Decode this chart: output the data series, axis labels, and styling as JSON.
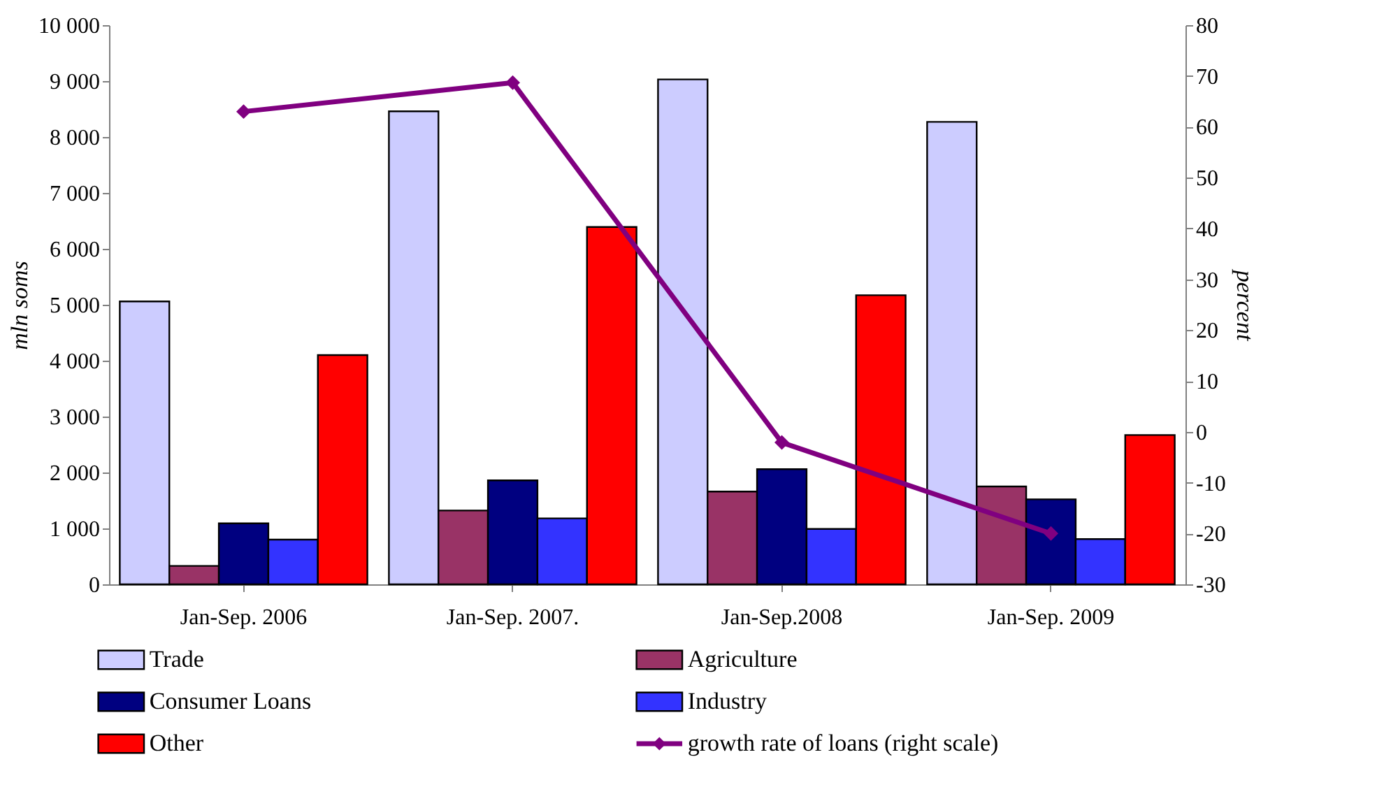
{
  "chart_data": {
    "type": "bar",
    "categories": [
      "Jan-Sep. 2006",
      "Jan-Sep. 2007.",
      "Jan-Sep.2008",
      "Jan-Sep. 2009"
    ],
    "ylabel": "mln soms",
    "y2label": "percent",
    "ylim": [
      0,
      10000
    ],
    "yticks": [
      0,
      {
        "value": 1000,
        "label": "1 000"
      },
      {
        "value": 2000,
        "label": "2 000"
      },
      {
        "value": 3000,
        "label": "3 000"
      },
      {
        "value": 4000,
        "label": "4 000"
      },
      {
        "value": 5000,
        "label": "5 000"
      },
      {
        "value": 6000,
        "label": "6 000"
      },
      {
        "value": 7000,
        "label": "7 000"
      },
      {
        "value": 8000,
        "label": "8 000"
      },
      {
        "value": 9000,
        "label": "9 000"
      },
      {
        "value": 10000,
        "label": "10 000"
      }
    ],
    "y2lim": [
      -30,
      80
    ],
    "y2ticks": [
      -30,
      -20,
      -10,
      0,
      10,
      20,
      30,
      40,
      50,
      60,
      70,
      80
    ],
    "legend": "bottom",
    "grid": false,
    "series": [
      {
        "name": "Trade",
        "color": "#ccccff",
        "values": [
          5060,
          8460,
          9030,
          8270
        ]
      },
      {
        "name": "Agriculture",
        "color": "#993366",
        "values": [
          330,
          1320,
          1660,
          1750
        ]
      },
      {
        "name": "Consumer Loans",
        "color": "#000080",
        "values": [
          1090,
          1860,
          2060,
          1520
        ]
      },
      {
        "name": "Industry",
        "color": "#3333ff",
        "values": [
          800,
          1180,
          990,
          810
        ]
      },
      {
        "name": "Other",
        "color": "#ff0000",
        "values": [
          4100,
          6390,
          5170,
          2670
        ]
      },
      {
        "name": "growth rate of loans (right scale)",
        "color": "#800080",
        "type": "line",
        "axis": "y2",
        "marker": "diamond",
        "values": [
          63,
          68.7,
          -2.1,
          -20
        ]
      }
    ]
  }
}
